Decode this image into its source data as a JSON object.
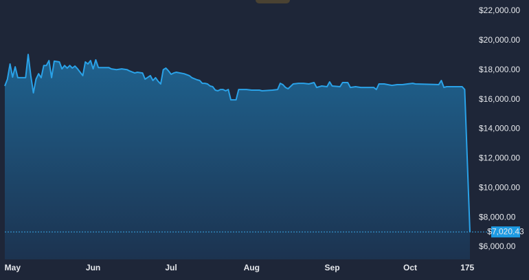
{
  "chart_data": {
    "type": "area",
    "color": "#2aa2e8",
    "x": [
      -3,
      -2,
      -1,
      0,
      1,
      2,
      5,
      6,
      7,
      8,
      9,
      10,
      11,
      12,
      13,
      14,
      15,
      16,
      18,
      19,
      20,
      21,
      22,
      23,
      24,
      25,
      26,
      27,
      28,
      29,
      30,
      31,
      32,
      33,
      35,
      37,
      38,
      40,
      42,
      44,
      45,
      47,
      48,
      50,
      51,
      53,
      54,
      55,
      56,
      57,
      58,
      59,
      60,
      61,
      62,
      63,
      66,
      68,
      69,
      71,
      72,
      73,
      74,
      75,
      76,
      77,
      78,
      79,
      80,
      81,
      82,
      83,
      84,
      86,
      87,
      90,
      92,
      95,
      96,
      100,
      102,
      103,
      104,
      105,
      106,
      108,
      110,
      112,
      114,
      116,
      117,
      119,
      121,
      122,
      123,
      126,
      127,
      129,
      130,
      132,
      134,
      139,
      140,
      141,
      143,
      146,
      148,
      150,
      152,
      154,
      155,
      164,
      165,
      166,
      167,
      172,
      173,
      174,
      176
    ],
    "values": [
      16920,
      17380,
      18410,
      17520,
      18220,
      17480,
      17480,
      19060,
      17620,
      16450,
      17380,
      17750,
      17480,
      18310,
      18310,
      18640,
      17480,
      18600,
      18550,
      18080,
      18310,
      18130,
      18310,
      18130,
      18270,
      18080,
      17850,
      17620,
      18550,
      18410,
      18640,
      18080,
      18690,
      18170,
      18170,
      18170,
      18080,
      18030,
      18080,
      18030,
      17940,
      17800,
      17850,
      17800,
      17380,
      17620,
      17290,
      17480,
      17240,
      17060,
      18030,
      18130,
      17940,
      17710,
      17800,
      17850,
      17750,
      17620,
      17480,
      17340,
      17290,
      17100,
      17100,
      17060,
      16920,
      16870,
      16640,
      16590,
      16680,
      16680,
      16590,
      16680,
      15980,
      15980,
      16680,
      16680,
      16640,
      16640,
      16590,
      16640,
      16680,
      17100,
      17010,
      16820,
      16730,
      17060,
      17100,
      17100,
      17060,
      17150,
      16820,
      16920,
      16870,
      17200,
      16920,
      16870,
      17150,
      17150,
      16820,
      16870,
      16820,
      16820,
      16680,
      17060,
      17060,
      16960,
      17010,
      17010,
      17060,
      17100,
      17060,
      17010,
      17290,
      16820,
      16870,
      16870,
      16870,
      16680,
      7020.43
    ],
    "xlim": [
      -3,
      176
    ],
    "ylim": [
      5160,
      22750
    ],
    "xticks": [
      {
        "value": 0,
        "label": "May"
      },
      {
        "value": 31,
        "label": "Jun"
      },
      {
        "value": 61,
        "label": "Jul"
      },
      {
        "value": 92,
        "label": "Aug"
      },
      {
        "value": 123,
        "label": "Sep"
      },
      {
        "value": 153,
        "label": "Oct"
      },
      175
    ],
    "yticks": [
      {
        "value": 6000,
        "label": "$6,000.00"
      },
      {
        "value": 8000,
        "label": "$8,000.00"
      },
      {
        "value": 10000,
        "label": "$10,000.00"
      },
      {
        "value": 12000,
        "label": "$12,000.00"
      },
      {
        "value": 14000,
        "label": "$14,000.00"
      },
      {
        "value": 16000,
        "label": "$16,000.00"
      },
      {
        "value": 18000,
        "label": "$18,000.00"
      },
      {
        "value": 20000,
        "label": "$20,000.00"
      },
      {
        "value": 22000,
        "label": "$22,000.00"
      }
    ],
    "price_line": {
      "value": 7020.43,
      "label": "$7,020.43"
    }
  }
}
